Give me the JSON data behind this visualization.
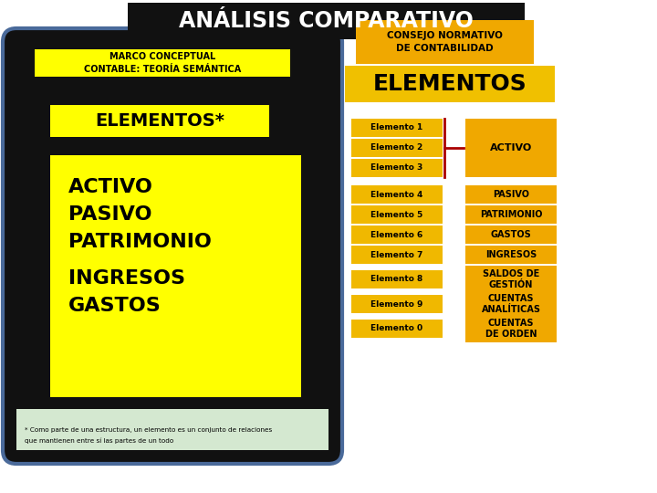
{
  "title": "ANÁLISIS COMPARATIVO",
  "title_bg": "#111111",
  "title_color": "#ffffff",
  "left_panel_bg": "#111111",
  "left_panel_border": "#4a6a9a",
  "marco_label": "MARCO CONCEPTUAL\nCONTABLE: TEORÍA SEMÁNTICA",
  "marco_bg": "#ffff00",
  "elementos_star_text": "ELEMENTOS*",
  "elementos_star_bg": "#ffff00",
  "left_items_bg": "#ffff00",
  "footnote_line1": "* Como parte de una estructura, un elemento es un conjunto de relaciones",
  "footnote_line2": "que mantienen entre sí las partes de un todo",
  "footnote_bg": "#d4e8d0",
  "right_header1": "CONSEJO NORMATIVO\nDE CONTABILIDAD",
  "right_header1_bg": "#f0a800",
  "right_elementos_text": "ELEMENTOS",
  "right_elementos_bg": "#f0c000",
  "elem_label_bg": "#f0b800",
  "elem_value_bg": "#f0a800",
  "bracket_color": "#aa0000",
  "elem_labels": [
    "Elemento 1",
    "Elemento 2",
    "Elemento 3",
    "Elemento 4",
    "Elemento 5",
    "Elemento 6",
    "Elemento 7",
    "Elemento 8",
    "Elemento 9",
    "Elemento 0"
  ],
  "elem_values": [
    "ACTIVO",
    "PASIVO",
    "PATRIMONIO",
    "GASTOS",
    "INGRESOS",
    "SALDOS DE\nGESTIÓN",
    "CUENTAS\nANALÍTICAS",
    "CUENTAS\nDE ORDEN"
  ],
  "left_words": [
    "ACTIVO",
    "PASIVO",
    "PATRIMONIO",
    "INGRESOS",
    "GASTOS"
  ]
}
